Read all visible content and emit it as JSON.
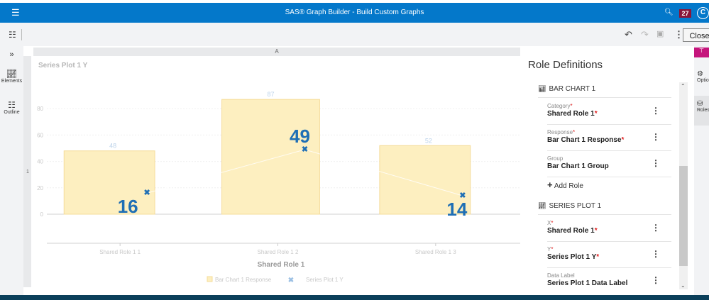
{
  "header": {
    "title": "SAS® Graph Builder - Build Custom Graphs",
    "notification_count": "27",
    "avatar_initial": "C"
  },
  "toolbar": {
    "close_label": "Close"
  },
  "rail": {
    "elements_label": "Elements",
    "outline_label": "Outline"
  },
  "canvas": {
    "column_header": "A",
    "row_header": "1"
  },
  "chart_data": {
    "type": "bar",
    "title": "Series Plot 1 Y",
    "xlabel": "Shared Role 1",
    "ylabel": "",
    "categories": [
      "Shared Role 1 1",
      "Shared Role 1 2",
      "Shared Role 1 3"
    ],
    "yticks": [
      "0",
      "20",
      "40",
      "60",
      "80"
    ],
    "ylim": [
      0,
      90
    ],
    "series": [
      {
        "name": "Bar Chart 1 Response",
        "type": "bar",
        "values": [
          48,
          87,
          52
        ],
        "color": "#fdefc0"
      },
      {
        "name": "Series Plot 1 Y",
        "type": "line",
        "values": [
          16,
          49,
          14
        ],
        "color": "#1f6fb5"
      }
    ],
    "bar_labels": [
      "48",
      "87",
      "52"
    ],
    "point_labels": [
      "16",
      "49",
      "14"
    ],
    "legend": [
      "Bar Chart 1 Response",
      "Series Plot 1 Y"
    ],
    "legend_position": "bottom"
  },
  "panel": {
    "title": "Role Definitions",
    "sections": [
      {
        "title": "BAR CHART 1",
        "roles": [
          {
            "label": "Category",
            "value": "Shared Role 1",
            "required": "*"
          },
          {
            "label": "Response",
            "value": "Bar Chart 1 Response",
            "required": "*"
          },
          {
            "label": "Group",
            "value": "Bar Chart 1 Group"
          }
        ],
        "add_role": "Add Role"
      },
      {
        "title": "SERIES PLOT 1",
        "roles": [
          {
            "label": "X",
            "value": "Shared Role 1",
            "required": "*"
          },
          {
            "label": "Y",
            "value": "Series Plot 1 Y",
            "required": "*"
          },
          {
            "label": "Data Label",
            "value": "Series Plot 1 Data Label"
          }
        ]
      }
    ]
  },
  "right_rail": {
    "options_label": "Options",
    "roles_label": "Roles"
  }
}
